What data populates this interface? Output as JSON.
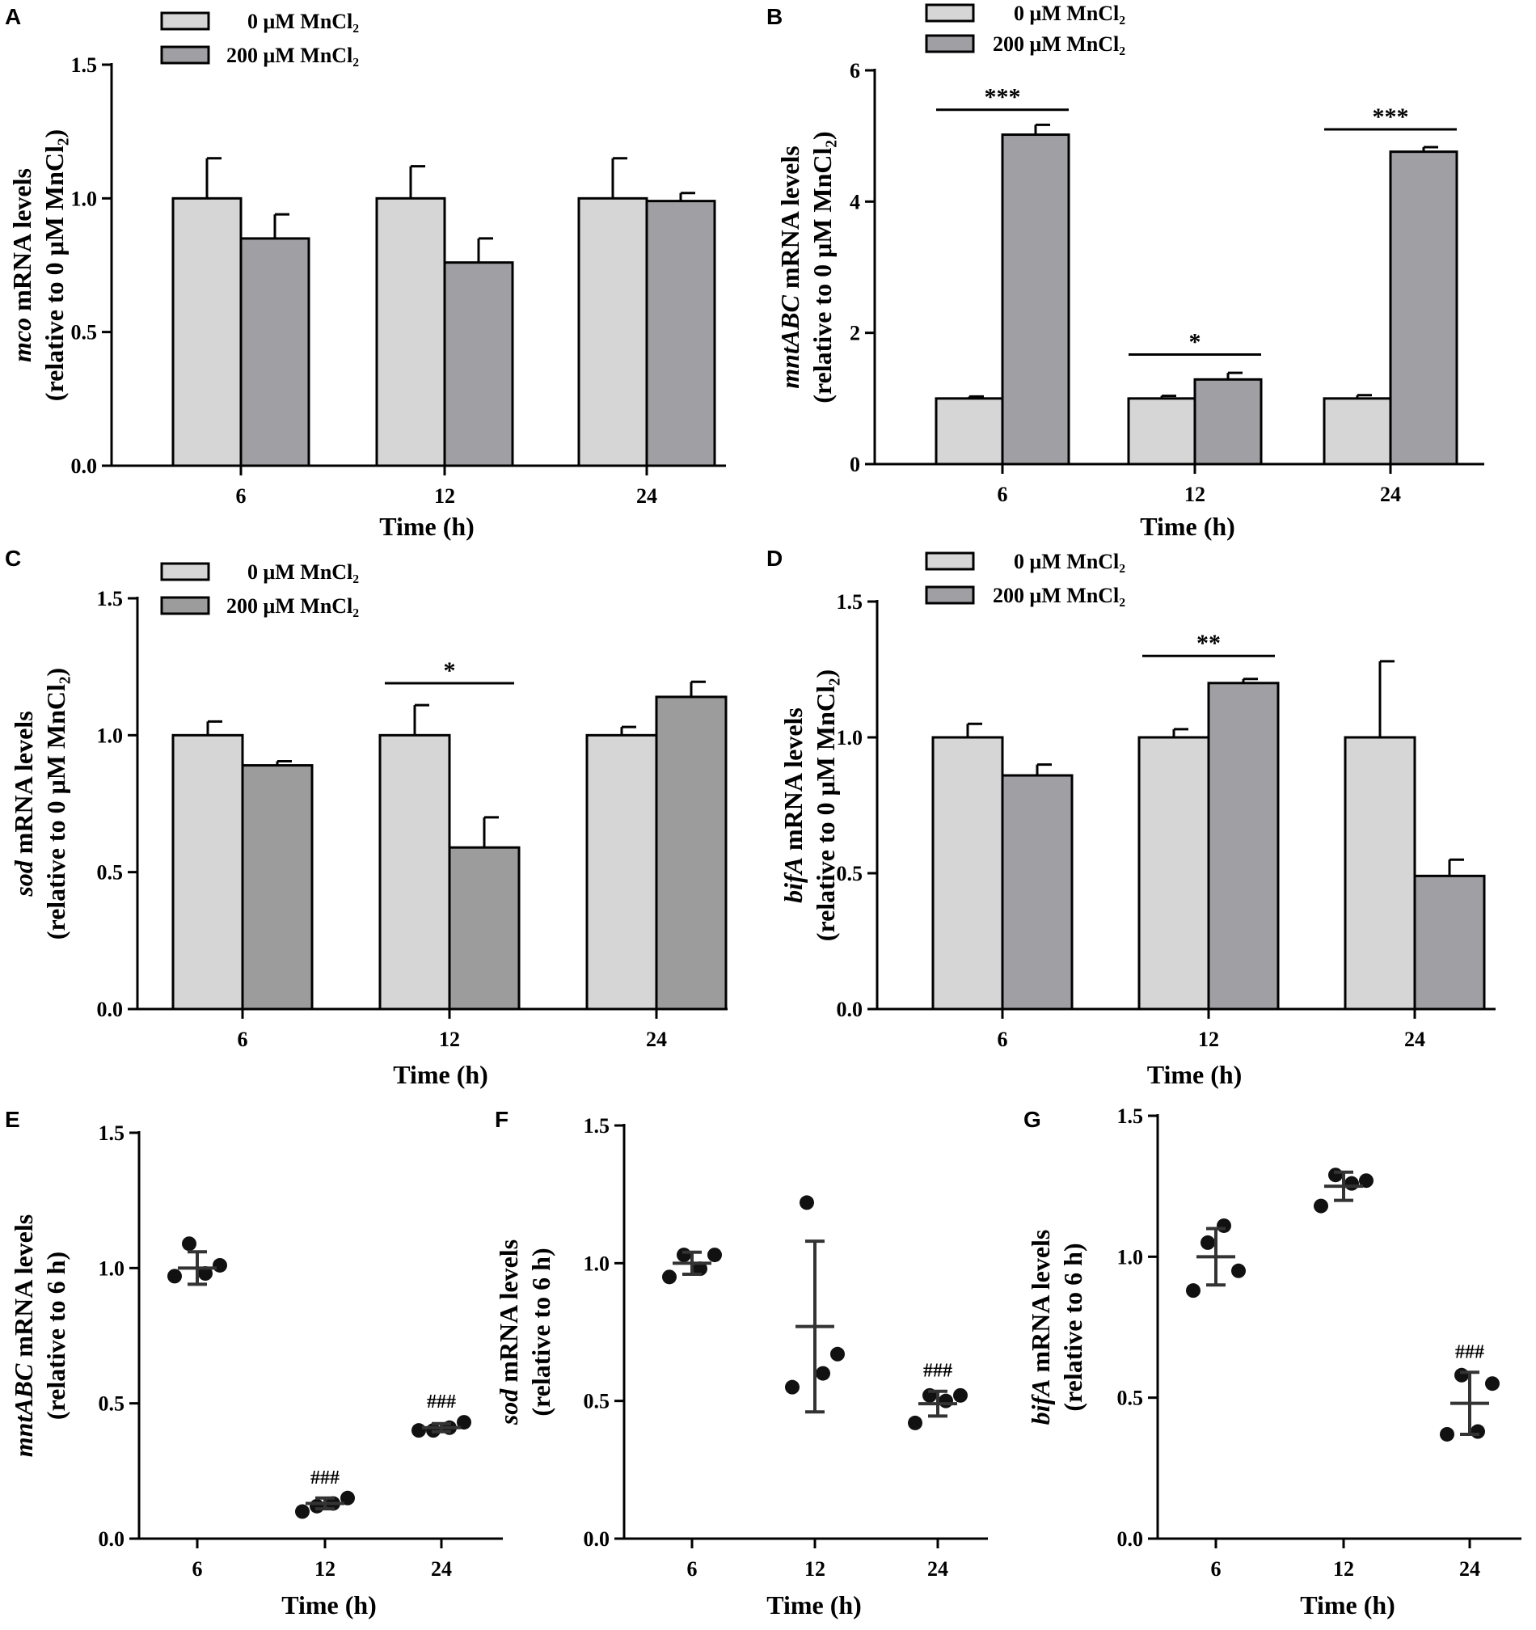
{
  "figure_colors": {
    "control": "#d6d6d6",
    "treated_dark": "#a0a0a4",
    "treated_mid": "#9c9c9c",
    "dot": "#111111",
    "errbar": "#333333"
  },
  "chart_data": [
    {
      "id": "A",
      "panel_letter": "A",
      "type": "bar",
      "title": "",
      "xlabel": "Time (h)",
      "ylabel_gene": "mco",
      "ylabel_rest": " mRNA levels",
      "ylabel_line2": "(relative to 0 μM  MnCl₂)",
      "categories": [
        "6",
        "12",
        "24"
      ],
      "ylim": [
        0,
        1.5
      ],
      "yticks": [
        "0.0",
        "0.5",
        "1.0",
        "1.5"
      ],
      "ytick_values": [
        0,
        0.5,
        1.0,
        1.5
      ],
      "legend": [
        "0   μM MnCl₂",
        "200 μM MnCl₂"
      ],
      "legend_position": "top-left",
      "series": [
        {
          "name": "0 μM MnCl₂",
          "values": [
            1.0,
            1.0,
            1.0
          ],
          "errors": [
            0.15,
            0.12,
            0.15
          ]
        },
        {
          "name": "200 μM MnCl₂",
          "values": [
            0.85,
            0.76,
            0.99
          ],
          "errors": [
            0.09,
            0.09,
            0.03
          ]
        }
      ],
      "significance": []
    },
    {
      "id": "B",
      "panel_letter": "B",
      "type": "bar",
      "title": "",
      "xlabel": "Time (h)",
      "ylabel_gene": "mntABC",
      "ylabel_rest": " mRNA levels",
      "ylabel_line2": "(relative to 0 μM MnCl₂)",
      "categories": [
        "6",
        "12",
        "24"
      ],
      "ylim": [
        0,
        6
      ],
      "yticks": [
        "0",
        "2",
        "4",
        "6"
      ],
      "ytick_values": [
        0,
        2,
        4,
        6
      ],
      "legend": [
        "0  μM MnCl₂",
        "200 μM MnCl₂"
      ],
      "legend_position": "top-left",
      "series": [
        {
          "name": "0 μM MnCl₂",
          "values": [
            1.0,
            1.0,
            1.0
          ],
          "errors": [
            0.03,
            0.04,
            0.05
          ]
        },
        {
          "name": "200 μM MnCl₂",
          "values": [
            5.02,
            1.29,
            4.76
          ],
          "errors": [
            0.15,
            0.1,
            0.07
          ]
        }
      ],
      "significance": [
        {
          "group": 0,
          "label": "***",
          "y": 5.4
        },
        {
          "group": 1,
          "label": "*",
          "y": 1.67
        },
        {
          "group": 2,
          "label": "***",
          "y": 5.1
        }
      ]
    },
    {
      "id": "C",
      "panel_letter": "C",
      "type": "bar",
      "title": "",
      "xlabel": "Time (h)",
      "ylabel_gene": "sod",
      "ylabel_rest": " mRNA levels",
      "ylabel_line2": "(relative to 0 μM  MnCl₂)",
      "categories": [
        "6",
        "12",
        "24"
      ],
      "ylim": [
        0,
        1.5
      ],
      "yticks": [
        "0.0",
        "0.5",
        "1.0",
        "1.5"
      ],
      "ytick_values": [
        0,
        0.5,
        1.0,
        1.5
      ],
      "legend": [
        "0  μM MnCl₂",
        "200 μM MnCl₂"
      ],
      "legend_position": "top-left",
      "series": [
        {
          "name": "0 μM MnCl₂",
          "values": [
            1.0,
            1.0,
            1.0
          ],
          "errors": [
            0.05,
            0.11,
            0.03
          ]
        },
        {
          "name": "200 μM MnCl₂",
          "values": [
            0.89,
            0.59,
            1.14
          ],
          "errors": [
            0.015,
            0.11,
            0.055
          ]
        }
      ],
      "significance": [
        {
          "group": 1,
          "label": "*",
          "y": 1.19
        }
      ]
    },
    {
      "id": "D",
      "panel_letter": "D",
      "type": "bar",
      "title": "",
      "xlabel": "Time (h)",
      "ylabel_gene": "bifA",
      "ylabel_rest": " mRNA levels",
      "ylabel_line2": "(relative to 0 μM  MnCl₂)",
      "categories": [
        "6",
        "12",
        "24"
      ],
      "ylim": [
        0,
        1.5
      ],
      "yticks": [
        "0.0",
        "0.5",
        "1.0",
        "1.5"
      ],
      "ytick_values": [
        0,
        0.5,
        1.0,
        1.5
      ],
      "legend": [
        "0   μM MnCl₂",
        "200 μM MnCl₂"
      ],
      "legend_position": "top-left",
      "series": [
        {
          "name": "0 μM MnCl₂",
          "values": [
            1.0,
            1.0,
            1.0
          ],
          "errors": [
            0.05,
            0.03,
            0.28
          ]
        },
        {
          "name": "200 μM MnCl₂",
          "values": [
            0.86,
            1.2,
            0.49
          ],
          "errors": [
            0.04,
            0.015,
            0.06
          ]
        }
      ],
      "significance": [
        {
          "group": 1,
          "label": "**",
          "y": 1.3
        }
      ]
    },
    {
      "id": "E",
      "panel_letter": "E",
      "type": "scatter",
      "title": "",
      "xlabel": "Time (h)",
      "ylabel_gene": "mntABC",
      "ylabel_rest": " mRNA levels",
      "ylabel_line2": "(relative to 6 h)",
      "categories": [
        "6",
        "12",
        "24"
      ],
      "ylim": [
        0,
        1.5
      ],
      "yticks": [
        "0.0",
        "0.5",
        "1.0",
        "1.5"
      ],
      "ytick_values": [
        0,
        0.5,
        1.0,
        1.5
      ],
      "groups": [
        {
          "points": [
            0.97,
            1.09,
            0.98,
            1.01
          ],
          "mean": 1.0,
          "error": 0.06,
          "annotation": ""
        },
        {
          "points": [
            0.1,
            0.12,
            0.13,
            0.15
          ],
          "mean": 0.13,
          "error": 0.02,
          "annotation": "###"
        },
        {
          "points": [
            0.4,
            0.4,
            0.41,
            0.43
          ],
          "mean": 0.41,
          "error": 0.015,
          "annotation": "###"
        }
      ]
    },
    {
      "id": "F",
      "panel_letter": "F",
      "type": "scatter",
      "title": "",
      "xlabel": "Time (h)",
      "ylabel_gene": "sod",
      "ylabel_rest": " mRNA levels",
      "ylabel_line2": "(relative to 6 h)",
      "categories": [
        "6",
        "12",
        "24"
      ],
      "ylim": [
        0,
        1.5
      ],
      "yticks": [
        "0.0",
        "0.5",
        "1.0",
        "1.5"
      ],
      "ytick_values": [
        0,
        0.5,
        1.0,
        1.5
      ],
      "groups": [
        {
          "points": [
            0.95,
            1.03,
            0.98,
            1.03
          ],
          "mean": 1.0,
          "error": 0.04,
          "annotation": ""
        },
        {
          "points": [
            0.55,
            1.22,
            0.6,
            0.67
          ],
          "mean": 0.77,
          "error": 0.31,
          "annotation": ""
        },
        {
          "points": [
            0.42,
            0.52,
            0.5,
            0.52
          ],
          "mean": 0.49,
          "error": 0.045,
          "annotation": "###"
        }
      ]
    },
    {
      "id": "G",
      "panel_letter": "G",
      "type": "scatter",
      "title": "",
      "xlabel": "Time (h)",
      "ylabel_gene": "bifA",
      "ylabel_rest": " mRNA levels",
      "ylabel_line2": "(relative to 6 h)",
      "categories": [
        "6",
        "12",
        "24"
      ],
      "ylim": [
        0,
        1.5
      ],
      "yticks": [
        "0.0",
        "0.5",
        "1.0",
        "1.5"
      ],
      "ytick_values": [
        0,
        0.5,
        1.0,
        1.5
      ],
      "groups": [
        {
          "points": [
            0.88,
            1.05,
            1.11,
            0.95
          ],
          "mean": 1.0,
          "error": 0.1,
          "annotation": ""
        },
        {
          "points": [
            1.18,
            1.29,
            1.26,
            1.27
          ],
          "mean": 1.25,
          "error": 0.05,
          "annotation": ""
        },
        {
          "points": [
            0.37,
            0.58,
            0.38,
            0.55
          ],
          "mean": 0.48,
          "error": 0.11,
          "annotation": "###"
        }
      ]
    }
  ]
}
